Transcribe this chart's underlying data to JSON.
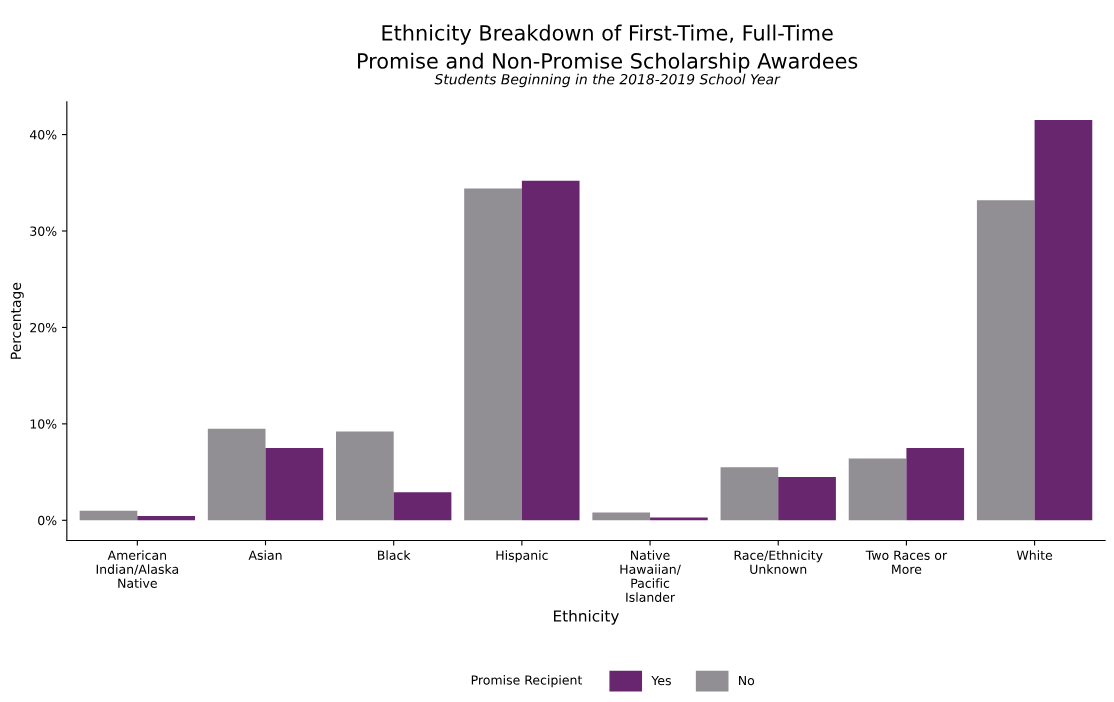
{
  "chart_data": {
    "type": "bar",
    "title": "Ethnicity Breakdown of First-Time, Full-Time\nPromise and Non-Promise Scholarship Awardees",
    "subtitle": "Students Beginning in the 2018-2019 School Year",
    "xlabel": "Ethnicity",
    "ylabel": "Percentage",
    "legend_title": "Promise Recipient",
    "legend": "bottom",
    "grid": false,
    "categories": [
      "American\nIndian/Alaska\nNative",
      "Asian",
      "Black",
      "Hispanic",
      "Native\nHawaiian/\nPacific\nIslander",
      "Race/Ethnicity\nUnknown",
      "Two Races or\nMore",
      "White"
    ],
    "series": [
      {
        "name": "No",
        "color": "#918e94",
        "values": [
          1.0,
          9.5,
          9.2,
          34.4,
          0.8,
          5.5,
          6.4,
          33.2
        ]
      },
      {
        "name": "Yes",
        "color": "#68266f",
        "values": [
          0.45,
          7.5,
          2.9,
          35.2,
          0.3,
          4.5,
          7.5,
          41.5
        ]
      }
    ],
    "ylim": [
      -2.1,
      43.4
    ],
    "yticks": [
      {
        "value": 0,
        "label": "0%"
      },
      {
        "value": 10,
        "label": "10%"
      },
      {
        "value": 20,
        "label": "20%"
      },
      {
        "value": 30,
        "label": "30%"
      },
      {
        "value": 40,
        "label": "40%"
      }
    ]
  }
}
